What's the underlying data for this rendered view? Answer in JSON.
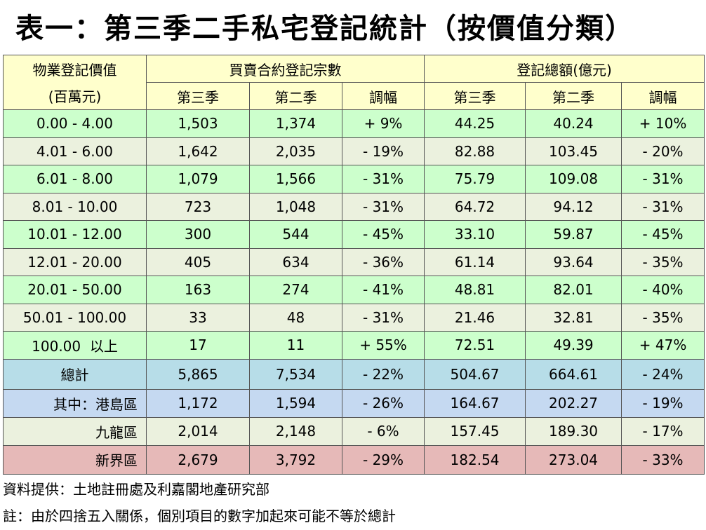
{
  "title": "表一：第三季二手私宅登記統計（按價值分類）",
  "table": {
    "header": {
      "value_band": "物業登記價值",
      "value_unit": "(百萬元)",
      "count_group": "買賣合約登記宗數",
      "amount_group": "登記總額(億元)",
      "sub": [
        "第三季",
        "第二季",
        "調幅",
        "第三季",
        "第二季",
        "調幅"
      ]
    },
    "rows": [
      [
        "0.00 - 4.00",
        "1,503",
        "1,374",
        "+ 9%",
        "44.25",
        "40.24",
        "+ 10%"
      ],
      [
        "4.01 - 6.00",
        "1,642",
        "2,035",
        "- 19%",
        "82.88",
        "103.45",
        "- 20%"
      ],
      [
        "6.01 - 8.00",
        "1,079",
        "1,566",
        "- 31%",
        "75.79",
        "109.08",
        "- 31%"
      ],
      [
        "8.01 - 10.00",
        "723",
        "1,048",
        "- 31%",
        "64.72",
        "94.12",
        "- 31%"
      ],
      [
        "10.01 - 12.00",
        "300",
        "544",
        "- 45%",
        "33.10",
        "59.87",
        "- 45%"
      ],
      [
        "12.01 - 20.00",
        "405",
        "634",
        "- 36%",
        "61.14",
        "93.64",
        "- 35%"
      ],
      [
        "20.01 - 50.00",
        "163",
        "274",
        "- 41%",
        "48.81",
        "82.01",
        "- 40%"
      ],
      [
        "50.01 - 100.00",
        "33",
        "48",
        "- 31%",
        "21.46",
        "32.81",
        "- 35%"
      ],
      [
        "100.00  以上",
        "17",
        "11",
        "+ 55%",
        "72.51",
        "49.39",
        "+ 47%"
      ]
    ],
    "summary_rows": [
      [
        "總計",
        "5,865",
        "7,534",
        "- 22%",
        "504.67",
        "664.61",
        "- 24%"
      ],
      [
        "其中：港島區",
        "1,172",
        "1,594",
        "- 26%",
        "164.67",
        "202.27",
        "- 19%"
      ],
      [
        "九龍區",
        "2,014",
        "2,148",
        "- 6%",
        "157.45",
        "189.30",
        "- 17%"
      ],
      [
        "新界區",
        "2,679",
        "3,792",
        "- 29%",
        "182.54",
        "273.04",
        "- 33%"
      ]
    ]
  },
  "notes": [
    "資料提供：土地註冊處及利嘉閣地產研究部",
    "註：由於四捨五入關係，個別項目的數字加起來可能不等於總計"
  ]
}
